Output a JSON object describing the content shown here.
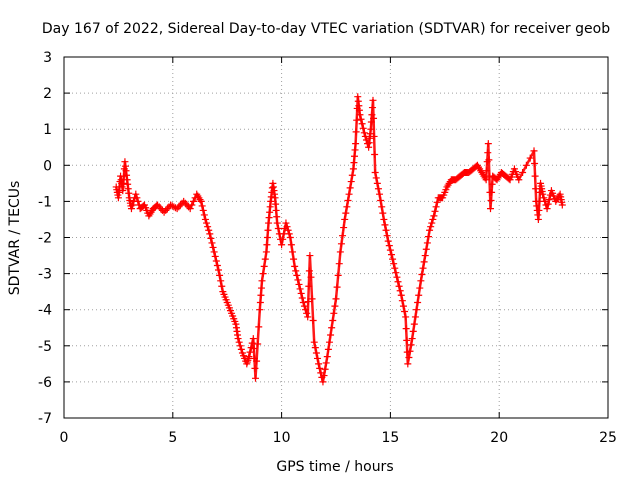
{
  "chart_data": {
    "type": "scatter",
    "title": "Day 167 of 2022, Sidereal Day-to-day VTEC variation (SDTVAR) for receiver geob",
    "xlabel": "GPS time / hours",
    "ylabel": "SDTVAR / TECUs",
    "xlim": [
      0,
      25
    ],
    "ylim": [
      -7,
      3
    ],
    "xticks": [
      "0",
      "5",
      "10",
      "15",
      "20",
      "25"
    ],
    "yticks": [
      "3",
      "2",
      "1",
      "0",
      "-1",
      "-2",
      "-3",
      "-4",
      "-5",
      "-6",
      "-7"
    ],
    "grid": true,
    "marker": "+",
    "series_color": "#ff0000",
    "series": [
      {
        "name": "SDTVAR",
        "points": [
          [
            2.4,
            -0.6
          ],
          [
            2.5,
            -0.9
          ],
          [
            2.6,
            -0.3
          ],
          [
            2.7,
            -0.7
          ],
          [
            2.8,
            0.1
          ],
          [
            2.9,
            -0.4
          ],
          [
            3.0,
            -0.9
          ],
          [
            3.1,
            -1.2
          ],
          [
            3.3,
            -0.8
          ],
          [
            3.5,
            -1.2
          ],
          [
            3.7,
            -1.1
          ],
          [
            3.9,
            -1.4
          ],
          [
            4.1,
            -1.2
          ],
          [
            4.3,
            -1.1
          ],
          [
            4.6,
            -1.3
          ],
          [
            4.9,
            -1.1
          ],
          [
            5.2,
            -1.2
          ],
          [
            5.5,
            -1.0
          ],
          [
            5.8,
            -1.2
          ],
          [
            6.1,
            -0.8
          ],
          [
            6.3,
            -1.0
          ],
          [
            6.5,
            -1.5
          ],
          [
            6.7,
            -1.9
          ],
          [
            6.9,
            -2.4
          ],
          [
            7.1,
            -2.9
          ],
          [
            7.3,
            -3.5
          ],
          [
            7.5,
            -3.8
          ],
          [
            7.7,
            -4.1
          ],
          [
            7.9,
            -4.4
          ],
          [
            8.0,
            -4.8
          ],
          [
            8.2,
            -5.2
          ],
          [
            8.4,
            -5.5
          ],
          [
            8.5,
            -5.3
          ],
          [
            8.7,
            -4.8
          ],
          [
            8.8,
            -5.9
          ],
          [
            9.0,
            -4.0
          ],
          [
            9.1,
            -3.2
          ],
          [
            9.3,
            -2.4
          ],
          [
            9.4,
            -1.6
          ],
          [
            9.5,
            -1.0
          ],
          [
            9.6,
            -0.5
          ],
          [
            9.7,
            -0.9
          ],
          [
            9.8,
            -1.6
          ],
          [
            10.0,
            -2.2
          ],
          [
            10.2,
            -1.6
          ],
          [
            10.4,
            -2.0
          ],
          [
            10.6,
            -2.8
          ],
          [
            10.8,
            -3.3
          ],
          [
            11.0,
            -3.8
          ],
          [
            11.2,
            -4.2
          ],
          [
            11.3,
            -2.5
          ],
          [
            11.5,
            -4.9
          ],
          [
            11.7,
            -5.5
          ],
          [
            11.9,
            -6.0
          ],
          [
            12.1,
            -5.3
          ],
          [
            12.3,
            -4.5
          ],
          [
            12.5,
            -3.7
          ],
          [
            12.7,
            -2.4
          ],
          [
            12.9,
            -1.5
          ],
          [
            13.1,
            -0.8
          ],
          [
            13.3,
            -0.1
          ],
          [
            13.4,
            0.6
          ],
          [
            13.5,
            1.9
          ],
          [
            13.6,
            1.4
          ],
          [
            13.8,
            0.9
          ],
          [
            14.0,
            0.5
          ],
          [
            14.1,
            1.0
          ],
          [
            14.2,
            1.8
          ],
          [
            14.3,
            -0.2
          ],
          [
            14.5,
            -0.8
          ],
          [
            14.7,
            -1.5
          ],
          [
            14.9,
            -2.1
          ],
          [
            15.1,
            -2.6
          ],
          [
            15.3,
            -3.1
          ],
          [
            15.5,
            -3.6
          ],
          [
            15.7,
            -4.2
          ],
          [
            15.8,
            -5.5
          ],
          [
            16.0,
            -4.8
          ],
          [
            16.2,
            -4.0
          ],
          [
            16.4,
            -3.2
          ],
          [
            16.6,
            -2.5
          ],
          [
            16.8,
            -1.8
          ],
          [
            17.0,
            -1.4
          ],
          [
            17.2,
            -0.9
          ],
          [
            17.4,
            -0.9
          ],
          [
            17.6,
            -0.6
          ],
          [
            17.8,
            -0.4
          ],
          [
            18.0,
            -0.4
          ],
          [
            18.2,
            -0.3
          ],
          [
            18.4,
            -0.2
          ],
          [
            18.6,
            -0.2
          ],
          [
            18.8,
            -0.1
          ],
          [
            19.0,
            0.0
          ],
          [
            19.2,
            -0.2
          ],
          [
            19.4,
            -0.4
          ],
          [
            19.5,
            0.6
          ],
          [
            19.6,
            -1.2
          ],
          [
            19.7,
            -0.3
          ],
          [
            19.9,
            -0.4
          ],
          [
            20.1,
            -0.2
          ],
          [
            20.3,
            -0.3
          ],
          [
            20.5,
            -0.4
          ],
          [
            20.7,
            -0.1
          ],
          [
            20.9,
            -0.4
          ],
          [
            21.6,
            0.4
          ],
          [
            21.7,
            -1.0
          ],
          [
            21.8,
            -1.5
          ],
          [
            21.9,
            -0.5
          ],
          [
            22.0,
            -0.8
          ],
          [
            22.2,
            -1.2
          ],
          [
            22.4,
            -0.7
          ],
          [
            22.6,
            -1.0
          ],
          [
            22.8,
            -0.8
          ],
          [
            22.9,
            -1.1
          ]
        ]
      }
    ]
  }
}
